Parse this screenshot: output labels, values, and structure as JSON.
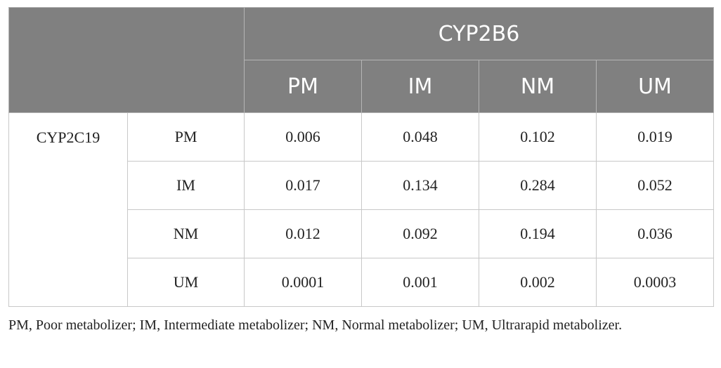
{
  "table": {
    "group_header": "CYP2B6",
    "column_headers": [
      "PM",
      "IM",
      "NM",
      "UM"
    ],
    "row_group": "CYP2C19",
    "rows": [
      [
        "PM",
        "0.006",
        "0.048",
        "0.102",
        "0.019"
      ],
      [
        "IM",
        "0.017",
        "0.134",
        "0.284",
        "0.052"
      ],
      [
        "NM",
        "0.012",
        "0.092",
        "0.194",
        "0.036"
      ],
      [
        "UM",
        "0.0001",
        "0.001",
        "0.002",
        "0.0003"
      ]
    ]
  },
  "footnote": "PM, Poor metabolizer; IM, Intermediate metabolizer; NM, Normal metabolizer; UM, Ultrarapid metabolizer."
}
